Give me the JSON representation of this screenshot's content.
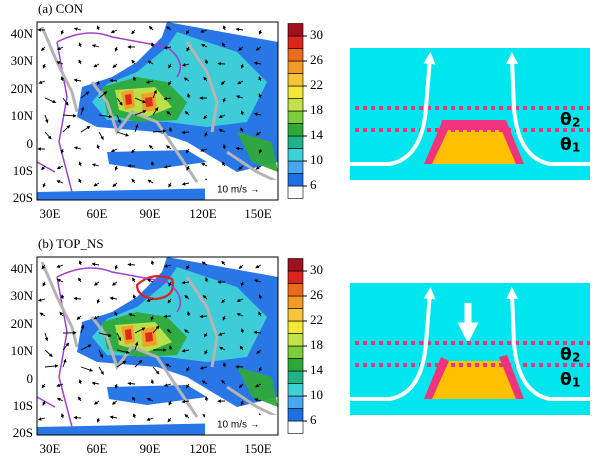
{
  "panels": [
    {
      "title": "(a) CON",
      "vector_ref": "10 m/s →"
    },
    {
      "title": "(b) TOP_NS",
      "vector_ref": "10 m/s →"
    }
  ],
  "lat_labels": [
    "40N",
    "30N",
    "20N",
    "10N",
    "0",
    "10S",
    "20S"
  ],
  "lon_labels": [
    "30E",
    "60E",
    "90E",
    "120E",
    "150E"
  ],
  "colorbar": {
    "ticks": [
      6,
      10,
      14,
      18,
      22,
      26,
      30
    ],
    "colors": [
      "#ffffff",
      "#1e6fe6",
      "#45a8f0",
      "#3fd1d8",
      "#20b38a",
      "#2fa83a",
      "#7ccc3c",
      "#c3e24a",
      "#f2e63a",
      "#f8c23a",
      "#f49a28",
      "#ea6a1e",
      "#d8261e",
      "#a0101e"
    ]
  },
  "schematic": {
    "theta2": {
      "symbol": "θ",
      "sub": "2"
    },
    "theta1": {
      "symbol": "θ",
      "sub": "1"
    }
  }
}
